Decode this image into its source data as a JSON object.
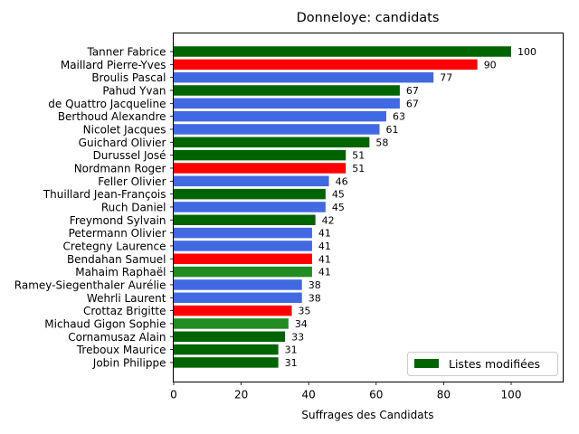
{
  "chart_data": {
    "type": "bar",
    "orientation": "horizontal",
    "title": "Donneloye: candidats",
    "xlabel": "Suffrages des Candidats",
    "ylabel": "",
    "xlim": [
      0,
      115
    ],
    "xticks": [
      0,
      20,
      40,
      60,
      80,
      100
    ],
    "grid": false,
    "legend": {
      "placement": "lower right",
      "entries": [
        {
          "label": "Listes modifiées",
          "color": "#006400"
        }
      ]
    },
    "colors": {
      "darkgreen": "#006400",
      "forestgreen": "#228B22",
      "red": "#FF0000",
      "blue": "#4169E1"
    },
    "categories": [
      "Tanner Fabrice",
      "Maillard Pierre-Yves",
      "Broulis Pascal",
      "Pahud Yvan",
      "de Quattro Jacqueline",
      "Berthoud Alexandre",
      "Nicolet Jacques",
      "Guichard Olivier",
      "Durussel José",
      "Nordmann Roger",
      "Feller Olivier",
      "Thuillard Jean-François",
      "Ruch Daniel",
      "Freymond Sylvain",
      "Petermann Olivier",
      "Cretegny Laurence",
      "Bendahan Samuel",
      "Mahaim Raphaël",
      "Ramey-Siegenthaler Aurélie",
      "Wehrli Laurent",
      "Crottaz Brigitte",
      "Michaud Gigon Sophie",
      "Cornamusaz Alain",
      "Treboux Maurice",
      "Jobin Philippe"
    ],
    "values": [
      100,
      90,
      77,
      67,
      67,
      63,
      61,
      58,
      51,
      51,
      46,
      45,
      45,
      42,
      41,
      41,
      41,
      41,
      38,
      38,
      35,
      34,
      33,
      31,
      31
    ],
    "bar_colors": [
      "#006400",
      "#FF0000",
      "#4169E1",
      "#006400",
      "#4169E1",
      "#4169E1",
      "#4169E1",
      "#006400",
      "#006400",
      "#FF0000",
      "#4169E1",
      "#006400",
      "#4169E1",
      "#006400",
      "#4169E1",
      "#4169E1",
      "#FF0000",
      "#228B22",
      "#4169E1",
      "#4169E1",
      "#FF0000",
      "#228B22",
      "#006400",
      "#006400",
      "#006400"
    ]
  }
}
